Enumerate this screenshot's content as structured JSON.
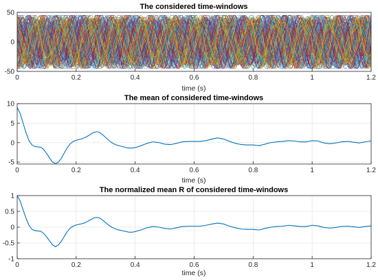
{
  "colors": {
    "mean_line": "#0072BD",
    "grid": "#e6e6e6",
    "axes": "#262626",
    "multi_series_palette": [
      "#0072BD",
      "#D95319",
      "#EDB120",
      "#7E2F8E",
      "#77AC30",
      "#4DBEEE",
      "#A2142F"
    ]
  },
  "chart_data": [
    {
      "type": "line",
      "title": "The considered time-windows",
      "xlabel": "time (s)",
      "ylabel": "",
      "xlim": [
        0,
        1.2
      ],
      "ylim": [
        -50,
        50
      ],
      "xticks": [
        0,
        0.2,
        0.4,
        0.6,
        0.8,
        1,
        1.2
      ],
      "xtick_labels": [
        "0",
        "0.2",
        "0.4",
        "0.6",
        "0.8",
        "1",
        "1.2"
      ],
      "yticks": [
        -50,
        0,
        50
      ],
      "ytick_labels": [
        "-50",
        "0",
        "50"
      ],
      "grid": true,
      "series_count_approx": 200,
      "amplitude_range": [
        -45,
        45
      ],
      "dominant_frequency_hz": 11
    },
    {
      "type": "line",
      "title": "The mean of considered time-windows",
      "xlabel": "time (s)",
      "ylabel": "",
      "xlim": [
        0,
        1.2
      ],
      "ylim": [
        -5.5,
        10
      ],
      "xticks": [
        0,
        0.2,
        0.4,
        0.6,
        0.8,
        1,
        1.2
      ],
      "xtick_labels": [
        "0",
        "0.2",
        "0.4",
        "0.6",
        "0.8",
        "1",
        "1.2"
      ],
      "yticks": [
        -5,
        0,
        5,
        10
      ],
      "ytick_labels": [
        "-5",
        "0",
        "5",
        "10"
      ],
      "grid": true,
      "series": [
        {
          "x": [
            0,
            0.01,
            0.02,
            0.03,
            0.04,
            0.05,
            0.06,
            0.07,
            0.08,
            0.09,
            0.1,
            0.11,
            0.12,
            0.13,
            0.14,
            0.15,
            0.16,
            0.17,
            0.18,
            0.19,
            0.2,
            0.21,
            0.22,
            0.23,
            0.24,
            0.25,
            0.26,
            0.27,
            0.28,
            0.29,
            0.3,
            0.31,
            0.32,
            0.33,
            0.34,
            0.35,
            0.36,
            0.37,
            0.38,
            0.39,
            0.4,
            0.42,
            0.44,
            0.46,
            0.48,
            0.5,
            0.52,
            0.54,
            0.56,
            0.58,
            0.6,
            0.62,
            0.64,
            0.66,
            0.68,
            0.7,
            0.72,
            0.74,
            0.76,
            0.78,
            0.8,
            0.82,
            0.84,
            0.86,
            0.88,
            0.9,
            0.92,
            0.94,
            0.96,
            0.98,
            1.0,
            1.02,
            1.04,
            1.06,
            1.08,
            1.1,
            1.12,
            1.14,
            1.16,
            1.18,
            1.2
          ],
          "y": [
            9.0,
            7.5,
            5.0,
            2.5,
            0.5,
            -0.6,
            -1.0,
            -1.1,
            -1.2,
            -1.8,
            -2.8,
            -4.0,
            -5.0,
            -5.4,
            -5.0,
            -4.0,
            -2.6,
            -1.3,
            -0.3,
            0.3,
            0.6,
            0.8,
            1.0,
            1.3,
            1.7,
            2.2,
            2.6,
            2.8,
            2.6,
            2.0,
            1.3,
            0.6,
            0.0,
            -0.4,
            -0.7,
            -0.9,
            -1.1,
            -1.3,
            -1.4,
            -1.4,
            -1.3,
            -0.8,
            -0.2,
            0.2,
            0.0,
            -0.4,
            -0.5,
            -0.2,
            0.2,
            0.3,
            0.3,
            0.3,
            0.5,
            0.9,
            1.2,
            0.9,
            0.3,
            -0.2,
            -0.5,
            -0.6,
            -0.6,
            -0.8,
            -0.4,
            0.0,
            0.2,
            0.3,
            0.5,
            0.4,
            0.2,
            0.2,
            0.5,
            0.4,
            -0.1,
            -0.3,
            -0.1,
            0.2,
            0.3,
            0.1,
            -0.1,
            0.2,
            0.4
          ]
        }
      ]
    },
    {
      "type": "line",
      "title": "The normalized mean R of considered time-windows",
      "xlabel": "time (s)",
      "ylabel": "",
      "xlim": [
        0,
        1.2
      ],
      "ylim": [
        -1,
        1
      ],
      "xticks": [
        0,
        0.2,
        0.4,
        0.6,
        0.8,
        1,
        1.2
      ],
      "xtick_labels": [
        "0",
        "0.2",
        "0.4",
        "0.6",
        "0.8",
        "1",
        "1.2"
      ],
      "yticks": [
        -1,
        -0.5,
        0,
        0.5,
        1
      ],
      "ytick_labels": [
        "-1",
        "-0.5",
        "0",
        "0.5",
        "1"
      ],
      "grid": true,
      "series": [
        {
          "x": [
            0,
            0.01,
            0.02,
            0.03,
            0.04,
            0.05,
            0.06,
            0.07,
            0.08,
            0.09,
            0.1,
            0.11,
            0.12,
            0.13,
            0.14,
            0.15,
            0.16,
            0.17,
            0.18,
            0.19,
            0.2,
            0.21,
            0.22,
            0.23,
            0.24,
            0.25,
            0.26,
            0.27,
            0.28,
            0.29,
            0.3,
            0.31,
            0.32,
            0.33,
            0.34,
            0.35,
            0.36,
            0.37,
            0.38,
            0.39,
            0.4,
            0.42,
            0.44,
            0.46,
            0.48,
            0.5,
            0.52,
            0.54,
            0.56,
            0.58,
            0.6,
            0.62,
            0.64,
            0.66,
            0.68,
            0.7,
            0.72,
            0.74,
            0.76,
            0.78,
            0.8,
            0.82,
            0.84,
            0.86,
            0.88,
            0.9,
            0.92,
            0.94,
            0.96,
            0.98,
            1.0,
            1.02,
            1.04,
            1.06,
            1.08,
            1.1,
            1.12,
            1.14,
            1.16,
            1.18,
            1.2
          ],
          "y": [
            1.0,
            0.83,
            0.55,
            0.28,
            0.06,
            -0.07,
            -0.11,
            -0.12,
            -0.13,
            -0.2,
            -0.31,
            -0.44,
            -0.56,
            -0.62,
            -0.56,
            -0.44,
            -0.29,
            -0.14,
            -0.03,
            0.03,
            0.07,
            0.09,
            0.11,
            0.14,
            0.19,
            0.24,
            0.29,
            0.31,
            0.29,
            0.22,
            0.14,
            0.07,
            0.0,
            -0.04,
            -0.08,
            -0.1,
            -0.12,
            -0.14,
            -0.16,
            -0.16,
            -0.14,
            -0.09,
            -0.02,
            0.02,
            0.0,
            -0.04,
            -0.06,
            -0.02,
            0.02,
            0.03,
            0.03,
            0.03,
            0.06,
            0.1,
            0.13,
            0.1,
            0.03,
            -0.02,
            -0.06,
            -0.07,
            -0.07,
            -0.09,
            -0.04,
            0.0,
            0.02,
            0.03,
            0.06,
            0.04,
            0.02,
            0.02,
            0.06,
            0.04,
            -0.01,
            -0.03,
            -0.01,
            0.02,
            0.03,
            0.01,
            -0.01,
            0.02,
            0.04
          ]
        }
      ]
    }
  ]
}
